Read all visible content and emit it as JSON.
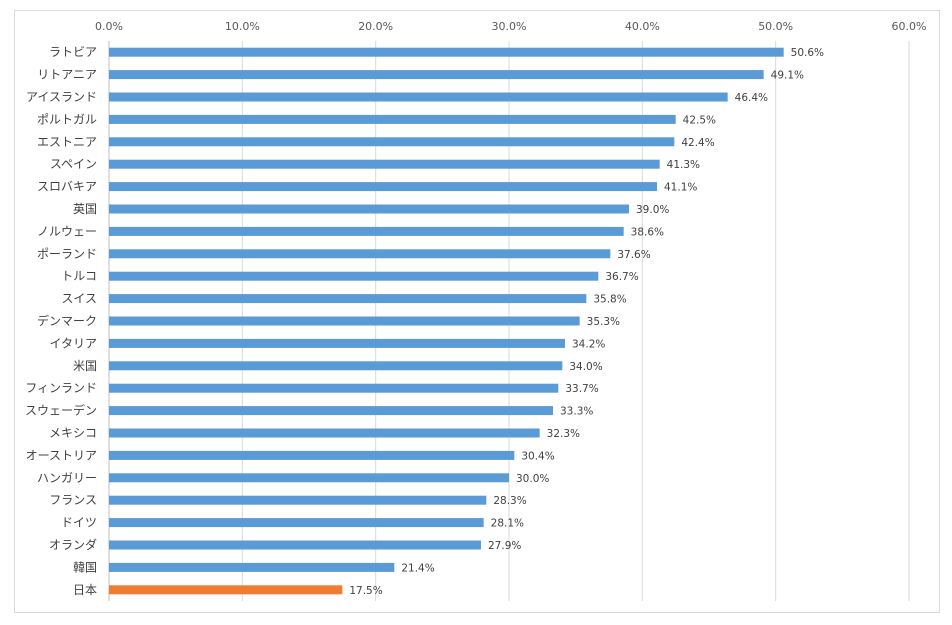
{
  "chart_data": {
    "type": "bar",
    "orientation": "horizontal",
    "title": "",
    "xlabel": "",
    "ylabel": "",
    "xlim": [
      0,
      60
    ],
    "x_ticks": [
      "0.0%",
      "10.0%",
      "20.0%",
      "30.0%",
      "40.0%",
      "50.0%",
      "60.0%"
    ],
    "x_axis_position": "top",
    "grid": true,
    "legend": "none",
    "bar_color": "#5b9bd5",
    "highlight_color": "#ed7d31",
    "highlight_category": "日本",
    "categories": [
      "ラトビア",
      "リトアニア",
      "アイスランド",
      "ポルトガル",
      "エストニア",
      "スペイン",
      "スロバキア",
      "英国",
      "ノルウェー",
      "ポーランド",
      "トルコ",
      "スイス",
      "デンマーク",
      "イタリア",
      "米国",
      "フィンランド",
      "スウェーデン",
      "メキシコ",
      "オーストリア",
      "ハンガリー",
      "フランス",
      "ドイツ",
      "オランダ",
      "韓国",
      "日本"
    ],
    "values": [
      50.6,
      49.1,
      46.4,
      42.5,
      42.4,
      41.3,
      41.1,
      39.0,
      38.6,
      37.6,
      36.7,
      35.8,
      35.3,
      34.2,
      34.0,
      33.7,
      33.3,
      32.3,
      30.4,
      30.0,
      28.3,
      28.1,
      27.9,
      21.4,
      17.5
    ],
    "data_labels": [
      "50.6%",
      "49.1%",
      "46.4%",
      "42.5%",
      "42.4%",
      "41.3%",
      "41.1%",
      "39.0%",
      "38.6%",
      "37.6%",
      "36.7%",
      "35.8%",
      "35.3%",
      "34.2%",
      "34.0%",
      "33.7%",
      "33.3%",
      "32.3%",
      "30.4%",
      "30.0%",
      "28.3%",
      "28.1%",
      "27.9%",
      "21.4%",
      "17.5%"
    ]
  }
}
